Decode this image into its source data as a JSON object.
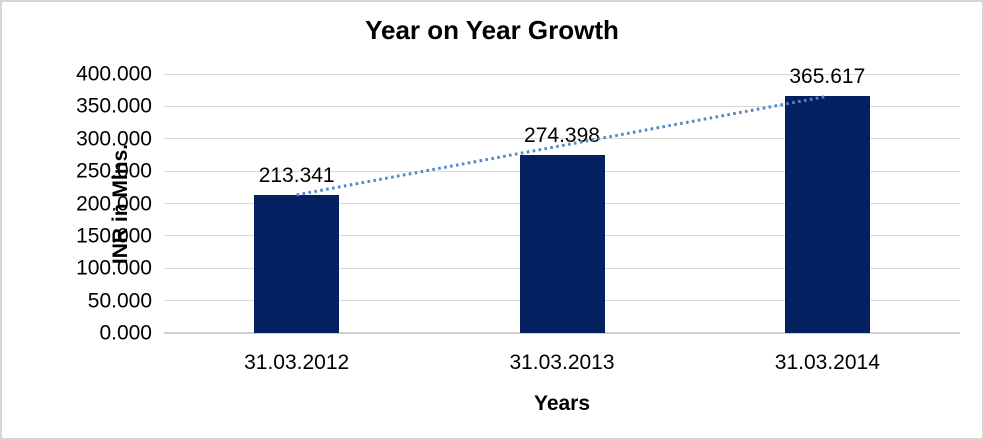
{
  "window": {
    "background_color": "#ffffff",
    "border_color": "#d6d6d6"
  },
  "chart_data": {
    "type": "bar",
    "title": "Year on Year Growth",
    "xlabel": "Years",
    "ylabel": "INR in Mlns.",
    "categories": [
      "31.03.2012",
      "31.03.2013",
      "31.03.2014"
    ],
    "values": [
      213.341,
      274.398,
      365.617
    ],
    "value_labels": [
      "213.341",
      "274.398",
      "365.617"
    ],
    "ylim": [
      0,
      400
    ],
    "ytick_step": 50,
    "ytick_labels": [
      "0.000",
      "50.000",
      "100.000",
      "150.000",
      "200.000",
      "250.000",
      "300.000",
      "350.000",
      "400.000"
    ],
    "grid": true,
    "legend": "none",
    "bar_color": "#052060",
    "gridline_color": "#d9d9d9",
    "axis_line_color": "#cfcfcf",
    "text_color": "#000000",
    "trendline": {
      "type": "linear",
      "style": "dotted",
      "color": "#5089c8",
      "from_index": 0,
      "to_index": 2
    }
  }
}
